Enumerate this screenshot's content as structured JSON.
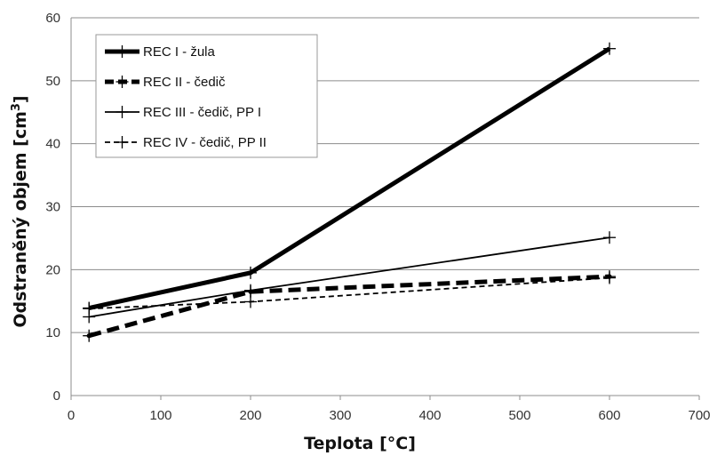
{
  "chart_data": {
    "type": "line",
    "title": "",
    "xlabel": "Teplota [°C]",
    "ylabel_main": "Odstraněný objem [cm",
    "ylabel_sup": "3",
    "ylabel_close": "]",
    "xlim": [
      0,
      700
    ],
    "ylim": [
      0,
      60
    ],
    "xticks": [
      "0",
      "100",
      "200",
      "300",
      "400",
      "500",
      "600",
      "700"
    ],
    "yticks": [
      "0",
      "10",
      "20",
      "30",
      "40",
      "50",
      "60"
    ],
    "grid": "horizontal",
    "legend_position": "top-left",
    "series": [
      {
        "name": "REC I - žula",
        "x": [
          20,
          200,
          600
        ],
        "y": [
          13.9,
          19.5,
          55.1
        ],
        "color": "#000000",
        "style": "thick-solid"
      },
      {
        "name": "REC II - čedič",
        "x": [
          20,
          200,
          600
        ],
        "y": [
          9.5,
          16.5,
          18.9
        ],
        "color": "#000000",
        "style": "thick-dashed"
      },
      {
        "name": "REC III - čedič, PP I",
        "x": [
          20,
          200,
          600
        ],
        "y": [
          12.5,
          16.7,
          25.1
        ],
        "color": "#000000",
        "style": "thin-solid"
      },
      {
        "name": "REC IV - čedič, PP II",
        "x": [
          20,
          200,
          600
        ],
        "y": [
          13.8,
          14.9,
          18.7
        ],
        "color": "#000000",
        "style": "thin-dashed"
      }
    ]
  }
}
